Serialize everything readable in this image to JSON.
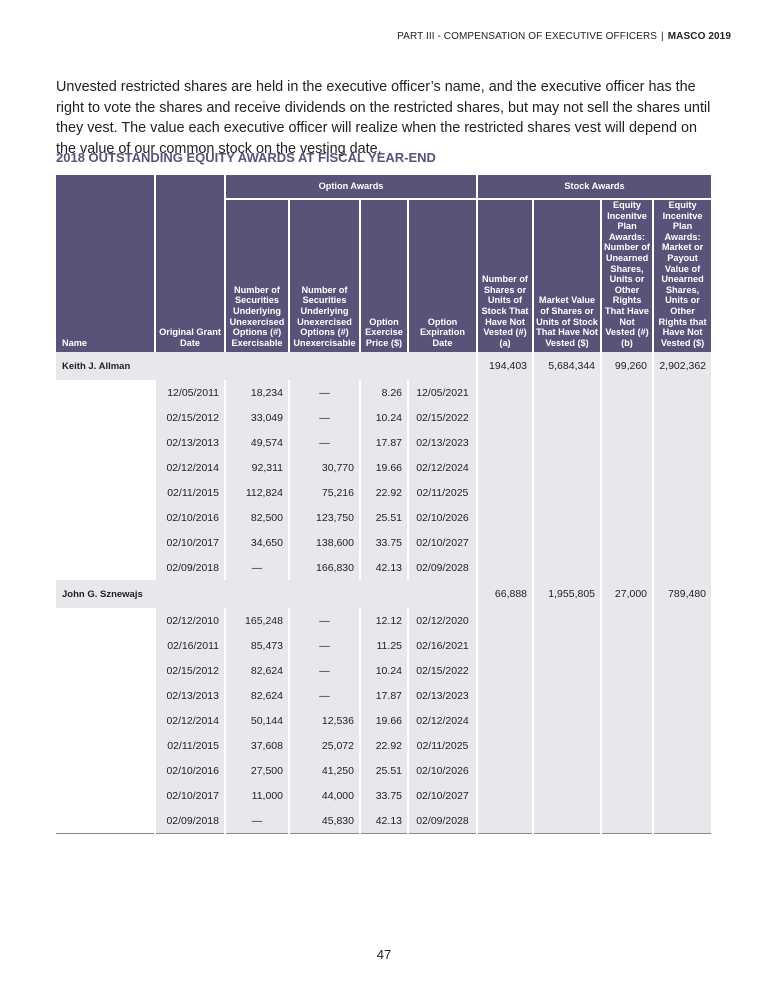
{
  "header": {
    "section": "PART III - COMPENSATION OF EXECUTIVE OFFICERS",
    "brand": "MASCO 2019"
  },
  "intro": "Unvested restricted shares are held in the executive officer’s name, and the executive officer has the right to vote the shares and receive dividends on the restricted shares, but may not sell the shares until they vest. The value each executive officer will realize when the restricted shares vest will depend on the value of our common stock on the vesting date.",
  "table": {
    "title": "2018 OUTSTANDING EQUITY AWARDS AT FISCAL YEAR-END",
    "groups": [
      "Option Awards",
      "Stock Awards"
    ],
    "columns": [
      "Name",
      "Original Grant Date",
      "Number of Securities Underlying Unexercised Options (#) Exercisable",
      "Number of Securities Underlying Unexercised Options (#) Unexercisable",
      "Option Exercise Price ($)",
      "Option Expiration Date",
      "Number of Shares or Units of Stock That Have Not Vested (#) (a)",
      "Market Value of Shares or Units of Stock That Have Not Vested ($)",
      "Equity Incenitve Plan Awards: Number of Unearned Shares, Units or Other Rights That Have Not Vested (#) (b)",
      "Equity Incenitve Plan Awards: Market or Payout Value of Unearned Shares, Units or Other Rights that Have Not Vested ($)"
    ],
    "rows": [
      {
        "name": "Keith J. Allman",
        "stock": [
          "194,403",
          "5,684,344",
          "99,260",
          "2,902,362"
        ],
        "grants": [
          [
            "12/05/2011",
            "18,234",
            "—",
            "8.26",
            "12/05/2021"
          ],
          [
            "02/15/2012",
            "33,049",
            "—",
            "10.24",
            "02/15/2022"
          ],
          [
            "02/13/2013",
            "49,574",
            "—",
            "17.87",
            "02/13/2023"
          ],
          [
            "02/12/2014",
            "92,311",
            "30,770",
            "19.66",
            "02/12/2024"
          ],
          [
            "02/11/2015",
            "112,824",
            "75,216",
            "22.92",
            "02/11/2025"
          ],
          [
            "02/10/2016",
            "82,500",
            "123,750",
            "25.51",
            "02/10/2026"
          ],
          [
            "02/10/2017",
            "34,650",
            "138,600",
            "33.75",
            "02/10/2027"
          ],
          [
            "02/09/2018",
            "—",
            "166,830",
            "42.13",
            "02/09/2028"
          ]
        ]
      },
      {
        "name": "John G. Sznewajs",
        "stock": [
          "66,888",
          "1,955,805",
          "27,000",
          "789,480"
        ],
        "grants": [
          [
            "02/12/2010",
            "165,248",
            "—",
            "12.12",
            "02/12/2020"
          ],
          [
            "02/16/2011",
            "85,473",
            "—",
            "11.25",
            "02/16/2021"
          ],
          [
            "02/15/2012",
            "82,624",
            "—",
            "10.24",
            "02/15/2022"
          ],
          [
            "02/13/2013",
            "82,624",
            "—",
            "17.87",
            "02/13/2023"
          ],
          [
            "02/12/2014",
            "50,144",
            "12,536",
            "19.66",
            "02/12/2024"
          ],
          [
            "02/11/2015",
            "37,608",
            "25,072",
            "22.92",
            "02/11/2025"
          ],
          [
            "02/10/2016",
            "27,500",
            "41,250",
            "25.51",
            "02/10/2026"
          ],
          [
            "02/10/2017",
            "11,000",
            "44,000",
            "33.75",
            "02/10/2027"
          ],
          [
            "02/09/2018",
            "—",
            "45,830",
            "42.13",
            "02/09/2028"
          ]
        ]
      }
    ]
  },
  "page_number": "47"
}
